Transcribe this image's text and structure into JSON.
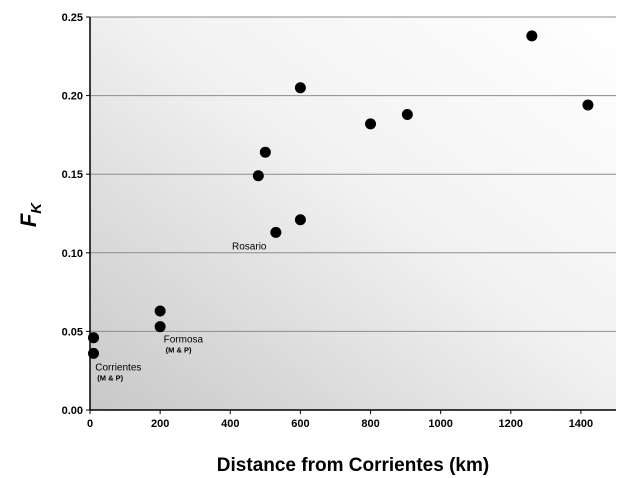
{
  "chart_data": {
    "type": "scatter",
    "xlabel": "Distance from Corrientes (km)",
    "ylabel_main": "F",
    "ylabel_sub": "K",
    "xlim": [
      0,
      1500
    ],
    "ylim": [
      0,
      0.25
    ],
    "x_ticks": [
      0,
      200,
      400,
      600,
      800,
      1000,
      1200,
      1400
    ],
    "x_tick_labels": [
      "0",
      "200",
      "400",
      "600",
      "800",
      "1000",
      "1200",
      "1400"
    ],
    "y_ticks": [
      0,
      0.05,
      0.1,
      0.15,
      0.2,
      0.25
    ],
    "y_tick_labels": [
      "0.00",
      "0.05",
      "0.10",
      "0.15",
      "0.20",
      "0.25"
    ],
    "grid": "horizontal",
    "points": [
      {
        "x": 10,
        "y": 0.046
      },
      {
        "x": 10,
        "y": 0.036
      },
      {
        "x": 200,
        "y": 0.063
      },
      {
        "x": 200,
        "y": 0.053
      },
      {
        "x": 480,
        "y": 0.149
      },
      {
        "x": 500,
        "y": 0.164
      },
      {
        "x": 530,
        "y": 0.113
      },
      {
        "x": 600,
        "y": 0.121
      },
      {
        "x": 600,
        "y": 0.205
      },
      {
        "x": 800,
        "y": 0.182
      },
      {
        "x": 905,
        "y": 0.188
      },
      {
        "x": 1260,
        "y": 0.238
      },
      {
        "x": 1420,
        "y": 0.194
      }
    ],
    "annotations": [
      {
        "text": "Corrientes",
        "sub": "(M & P)",
        "x": 15,
        "y": 0.025
      },
      {
        "text": "Formosa",
        "sub": "(M & P)",
        "x": 210,
        "y": 0.043
      },
      {
        "text": "Rosario",
        "sub": "",
        "x": 405,
        "y": 0.102
      }
    ],
    "colors": {
      "marker": "#000000",
      "grid": "#8c8c8c",
      "bg_light": "#ffffff",
      "bg_dark": "#c8c8c8"
    }
  }
}
